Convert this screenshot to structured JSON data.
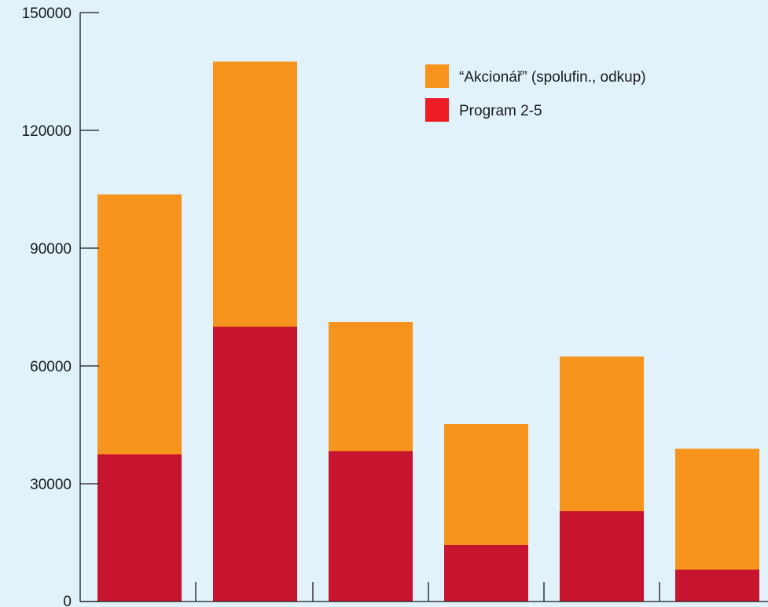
{
  "chart_data": {
    "type": "bar",
    "stacked": true,
    "categories": [
      "",
      "",
      "",
      "",
      "",
      ""
    ],
    "series": [
      {
        "name": "Program 2-5",
        "color": "#c8152f",
        "values": [
          37500,
          70000,
          38300,
          14400,
          23000,
          8100
        ]
      },
      {
        "name": "“Akcionář” (spolufin., odkup)",
        "color": "#f7941d",
        "values": [
          66200,
          67500,
          32900,
          30800,
          39400,
          30800
        ]
      }
    ],
    "ylim": [
      0,
      150000
    ],
    "yticks": [
      "0",
      "30000",
      "60000",
      "90000",
      "120000",
      "150000"
    ],
    "xlabel": "",
    "ylabel": "",
    "title": "",
    "grid": false,
    "legend_placement": "top-right",
    "background": "#e2f2fb"
  },
  "legend": {
    "items": [
      {
        "label": "“Akcionář” (spolufin., odkup)",
        "color": "#f7941d"
      },
      {
        "label": "Program 2-5",
        "color": "#ee1c25"
      }
    ]
  }
}
